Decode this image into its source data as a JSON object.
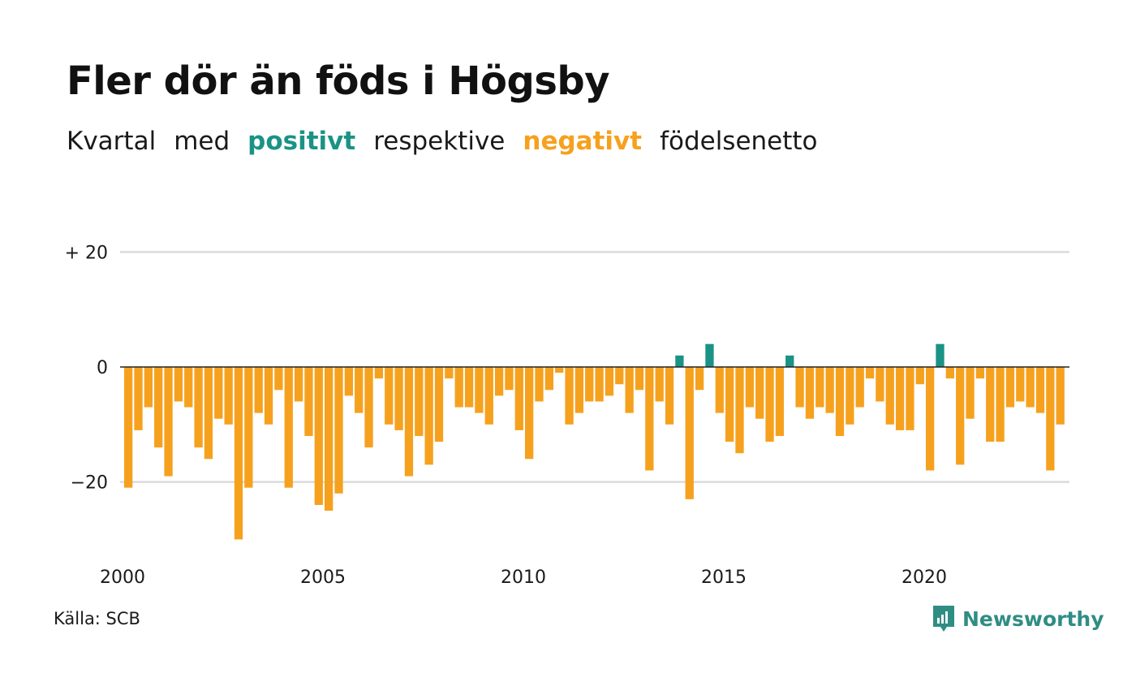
{
  "title": "Fler dör än föds i Högsby",
  "subtitle": {
    "part1": "Kvartal",
    "part2": "med",
    "positive_word": "positivt",
    "part3": "respektive",
    "negative_word": "negativt",
    "part4": "födelsenetto"
  },
  "colors": {
    "positive": "#1a9385",
    "negative": "#f6a11e",
    "grid": "#dcdcdc",
    "brand": "#2f8d84"
  },
  "source": "Källa: SCB",
  "brand": {
    "name": "Newsworthy",
    "icon": "newsworthy-logo-icon"
  },
  "chart_data": {
    "type": "bar",
    "title": "Fler dör än föds i Högsby",
    "xlabel": "",
    "ylabel": "",
    "ylim": [
      -31,
      20
    ],
    "y_ticks": [
      20,
      0,
      -20
    ],
    "y_tick_labels": [
      "+ 20",
      "0",
      "−20"
    ],
    "x_ticks": [
      2000,
      2005,
      2010,
      2015,
      2020
    ],
    "x_tick_labels": [
      "2000",
      "2005",
      "2010",
      "2015",
      "2020"
    ],
    "start_year": 2000,
    "periods_per_year": 4,
    "grid": true,
    "values": [
      -21,
      -11,
      -7,
      -14,
      -19,
      -6,
      -7,
      -14,
      -16,
      -9,
      -10,
      -30,
      -21,
      -8,
      -10,
      -4,
      -21,
      -6,
      -12,
      -24,
      -25,
      -22,
      -5,
      -8,
      -14,
      -2,
      -10,
      -11,
      -19,
      -12,
      -17,
      -13,
      -2,
      -7,
      -7,
      -8,
      -10,
      -5,
      -4,
      -11,
      -16,
      -6,
      -4,
      -1,
      -10,
      -8,
      -6,
      -6,
      -5,
      -3,
      -8,
      -4,
      -18,
      -6,
      -10,
      2,
      -23,
      -4,
      4,
      -8,
      -13,
      -15,
      -7,
      -9,
      -13,
      -12,
      2,
      -7,
      -9,
      -7,
      -8,
      -12,
      -10,
      -7,
      -2,
      -6,
      -10,
      -11,
      -11,
      -3,
      -18,
      4,
      -2,
      -17,
      -9,
      -2,
      -13,
      -13,
      -7,
      -6,
      -7,
      -8,
      -18,
      -10
    ]
  }
}
